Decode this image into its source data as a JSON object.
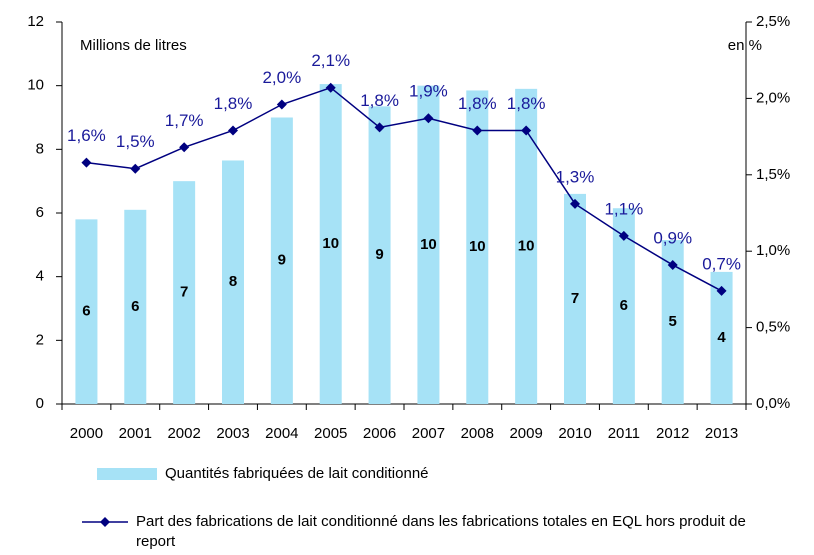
{
  "chart_data": {
    "type": "bar_line",
    "y_label": "Millions de litres",
    "y2_label": "en %",
    "categories": [
      "2000",
      "2001",
      "2002",
      "2003",
      "2004",
      "2005",
      "2006",
      "2007",
      "2008",
      "2009",
      "2010",
      "2011",
      "2012",
      "2013"
    ],
    "series": [
      {
        "name": "Quantités fabriquées de lait conditionné",
        "type": "bar",
        "color": "#a6e2f6",
        "values": [
          5.8,
          6.1,
          7.0,
          7.65,
          9.0,
          10.05,
          9.35,
          10.0,
          9.85,
          9.9,
          6.6,
          6.15,
          5.15,
          4.15
        ],
        "value_labels": [
          "6",
          "6",
          "7",
          "8",
          "9",
          "10",
          "9",
          "10",
          "10",
          "10",
          "7",
          "6",
          "5",
          "4"
        ]
      },
      {
        "name": "Part des fabrications de lait conditionné dans les fabrications totales en EQL hors produit de report",
        "type": "line",
        "color": "#000080",
        "axis": "y2",
        "values": [
          1.58,
          1.54,
          1.68,
          1.79,
          1.96,
          2.07,
          1.81,
          1.87,
          1.79,
          1.79,
          1.31,
          1.1,
          0.91,
          0.74
        ],
        "value_labels": [
          "1,6%",
          "1,5%",
          "1,7%",
          "1,8%",
          "2,0%",
          "2,1%",
          "1,8%",
          "1,9%",
          "1,8%",
          "1,8%",
          "1,3%",
          "1,1%",
          "0,9%",
          "0,7%"
        ]
      }
    ],
    "ylim": [
      0,
      12
    ],
    "yticks": [
      0,
      2,
      4,
      6,
      8,
      10,
      12
    ],
    "y2lim": [
      0,
      2.5
    ],
    "y2ticks": [
      {
        "value": 0,
        "label": "0,0%"
      },
      {
        "value": 0.5,
        "label": "0,5%"
      },
      {
        "value": 1,
        "label": "1,0%"
      },
      {
        "value": 1.5,
        "label": "1,5%"
      },
      {
        "value": 2,
        "label": "2,0%"
      },
      {
        "value": 2.5,
        "label": "2,5%"
      }
    ]
  }
}
